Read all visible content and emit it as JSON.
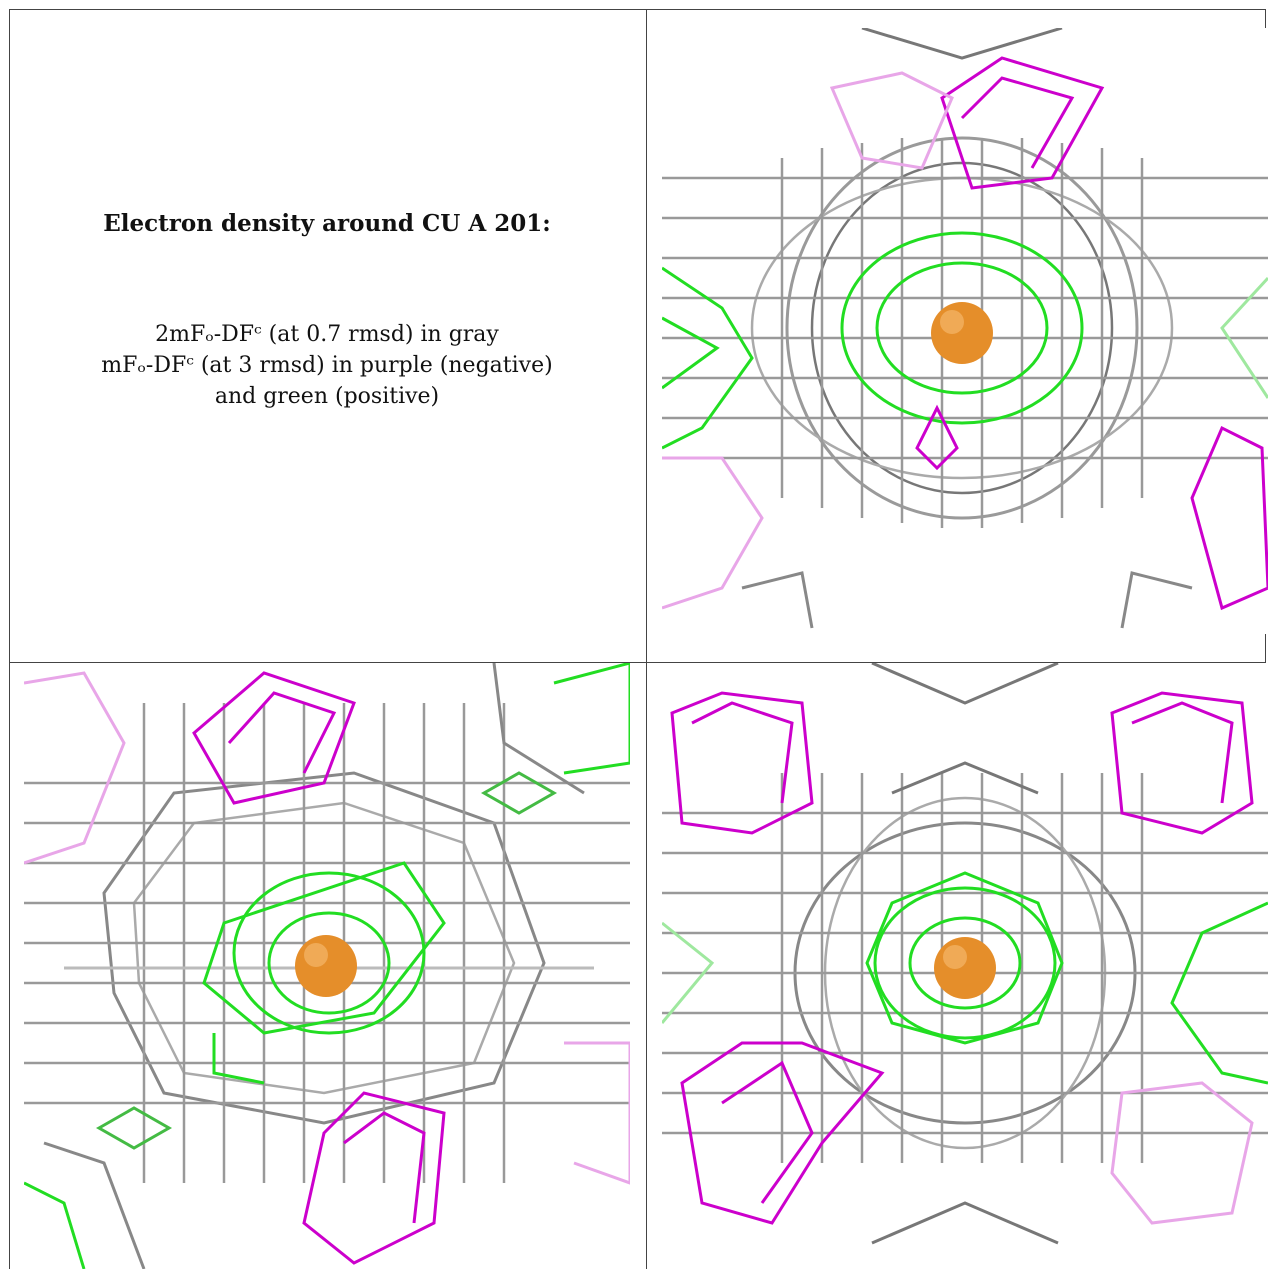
{
  "caption": {
    "title": "Electron density around CU A 201:",
    "line1": "2mFₒ-DFᶜ (at 0.7 rmsd) in gray",
    "line2": "mFₒ-DFᶜ (at 3 rmsd) in purple (negative)",
    "line3": "and green (positive)"
  },
  "colors": {
    "map_2fofc": "#9a9a9a",
    "map_2fofc_dark": "#555555",
    "map_negative": "#cc00cc",
    "map_negative_faded": "#e8a6e8",
    "map_positive": "#22dd22",
    "map_positive_faded": "#9fe89f",
    "copper_atom": "#e58e2a"
  },
  "panels": [
    {
      "view": "top-right",
      "atom_icon": "copper-atom-sphere"
    },
    {
      "view": "bottom-left",
      "atom_icon": "copper-atom-sphere"
    },
    {
      "view": "bottom-right",
      "atom_icon": "copper-atom-sphere"
    }
  ]
}
